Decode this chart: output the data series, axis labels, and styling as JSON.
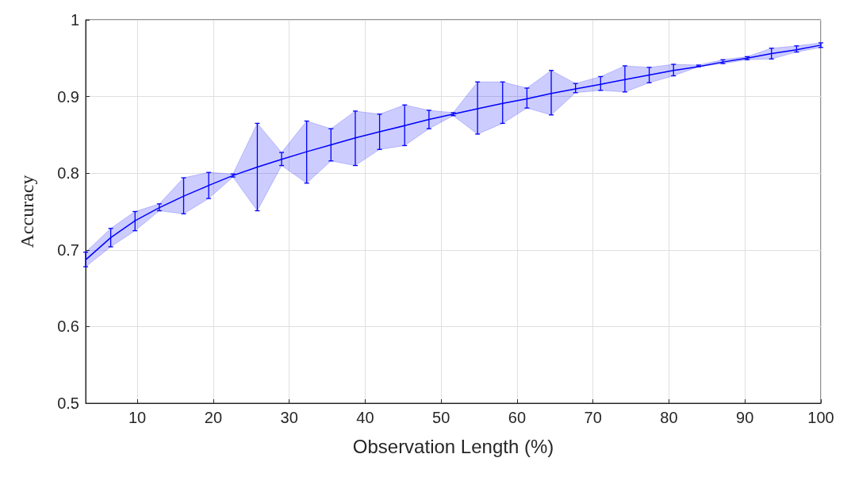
{
  "chart_data": {
    "type": "line",
    "xlabel": "Observation Length (%)",
    "ylabel": "Accuracy",
    "x": [
      3.2,
      6.5,
      9.7,
      12.9,
      16.1,
      19.4,
      22.6,
      25.8,
      29.0,
      32.3,
      35.5,
      38.7,
      41.9,
      45.2,
      48.4,
      51.6,
      54.8,
      58.1,
      61.3,
      64.5,
      67.7,
      71.0,
      74.2,
      77.4,
      80.6,
      83.9,
      87.1,
      90.3,
      93.5,
      96.8,
      100
    ],
    "series": [
      {
        "color": "#0000ff",
        "values": [
          0.687,
          0.716,
          0.738,
          0.755,
          0.77,
          0.784,
          0.797,
          0.808,
          0.818,
          0.828,
          0.837,
          0.846,
          0.854,
          0.862,
          0.87,
          0.877,
          0.884,
          0.891,
          0.897,
          0.904,
          0.91,
          0.916,
          0.922,
          0.928,
          0.934,
          0.939,
          0.945,
          0.95,
          0.956,
          0.961,
          0.967
        ],
        "errors": [
          [
            0.678,
            0.697
          ],
          [
            0.704,
            0.728
          ],
          [
            0.725,
            0.75
          ],
          [
            0.751,
            0.76
          ],
          [
            0.747,
            0.794
          ],
          [
            0.767,
            0.801
          ],
          [
            0.795,
            0.799
          ],
          [
            0.751,
            0.865
          ],
          [
            0.81,
            0.827
          ],
          [
            0.787,
            0.868
          ],
          [
            0.816,
            0.858
          ],
          [
            0.81,
            0.881
          ],
          [
            0.831,
            0.877
          ],
          [
            0.836,
            0.889
          ],
          [
            0.858,
            0.882
          ],
          [
            0.875,
            0.879
          ],
          [
            0.851,
            0.919
          ],
          [
            0.865,
            0.919
          ],
          [
            0.885,
            0.911
          ],
          [
            0.876,
            0.934
          ],
          [
            0.905,
            0.917
          ],
          [
            0.908,
            0.926
          ],
          [
            0.906,
            0.94
          ],
          [
            0.918,
            0.938
          ],
          [
            0.927,
            0.942
          ],
          [
            0.939,
            0.941
          ],
          [
            0.943,
            0.948
          ],
          [
            0.948,
            0.952
          ],
          [
            0.949,
            0.963
          ],
          [
            0.958,
            0.966
          ],
          [
            0.964,
            0.97
          ]
        ],
        "lower": [
          0.678,
          0.704,
          0.725,
          0.751,
          0.747,
          0.767,
          0.795,
          0.751,
          0.81,
          0.787,
          0.816,
          0.81,
          0.831,
          0.836,
          0.858,
          0.875,
          0.851,
          0.865,
          0.885,
          0.876,
          0.905,
          0.908,
          0.906,
          0.918,
          0.927,
          0.939,
          0.943,
          0.948,
          0.949,
          0.958,
          0.964
        ],
        "upper": [
          0.697,
          0.728,
          0.75,
          0.76,
          0.794,
          0.801,
          0.799,
          0.865,
          0.827,
          0.868,
          0.858,
          0.881,
          0.877,
          0.889,
          0.882,
          0.879,
          0.919,
          0.919,
          0.911,
          0.934,
          0.917,
          0.926,
          0.94,
          0.938,
          0.942,
          0.941,
          0.948,
          0.952,
          0.963,
          0.966,
          0.97
        ]
      }
    ],
    "xlim": [
      3.2,
      100
    ],
    "xticks": [
      10,
      20,
      30,
      40,
      50,
      60,
      70,
      80,
      90,
      100
    ],
    "ylim": [
      0.5,
      1
    ],
    "yticks": [
      0.5,
      0.6,
      0.7,
      0.8,
      0.9,
      1
    ],
    "grid": true,
    "marker": "none",
    "line_style": "solid"
  }
}
